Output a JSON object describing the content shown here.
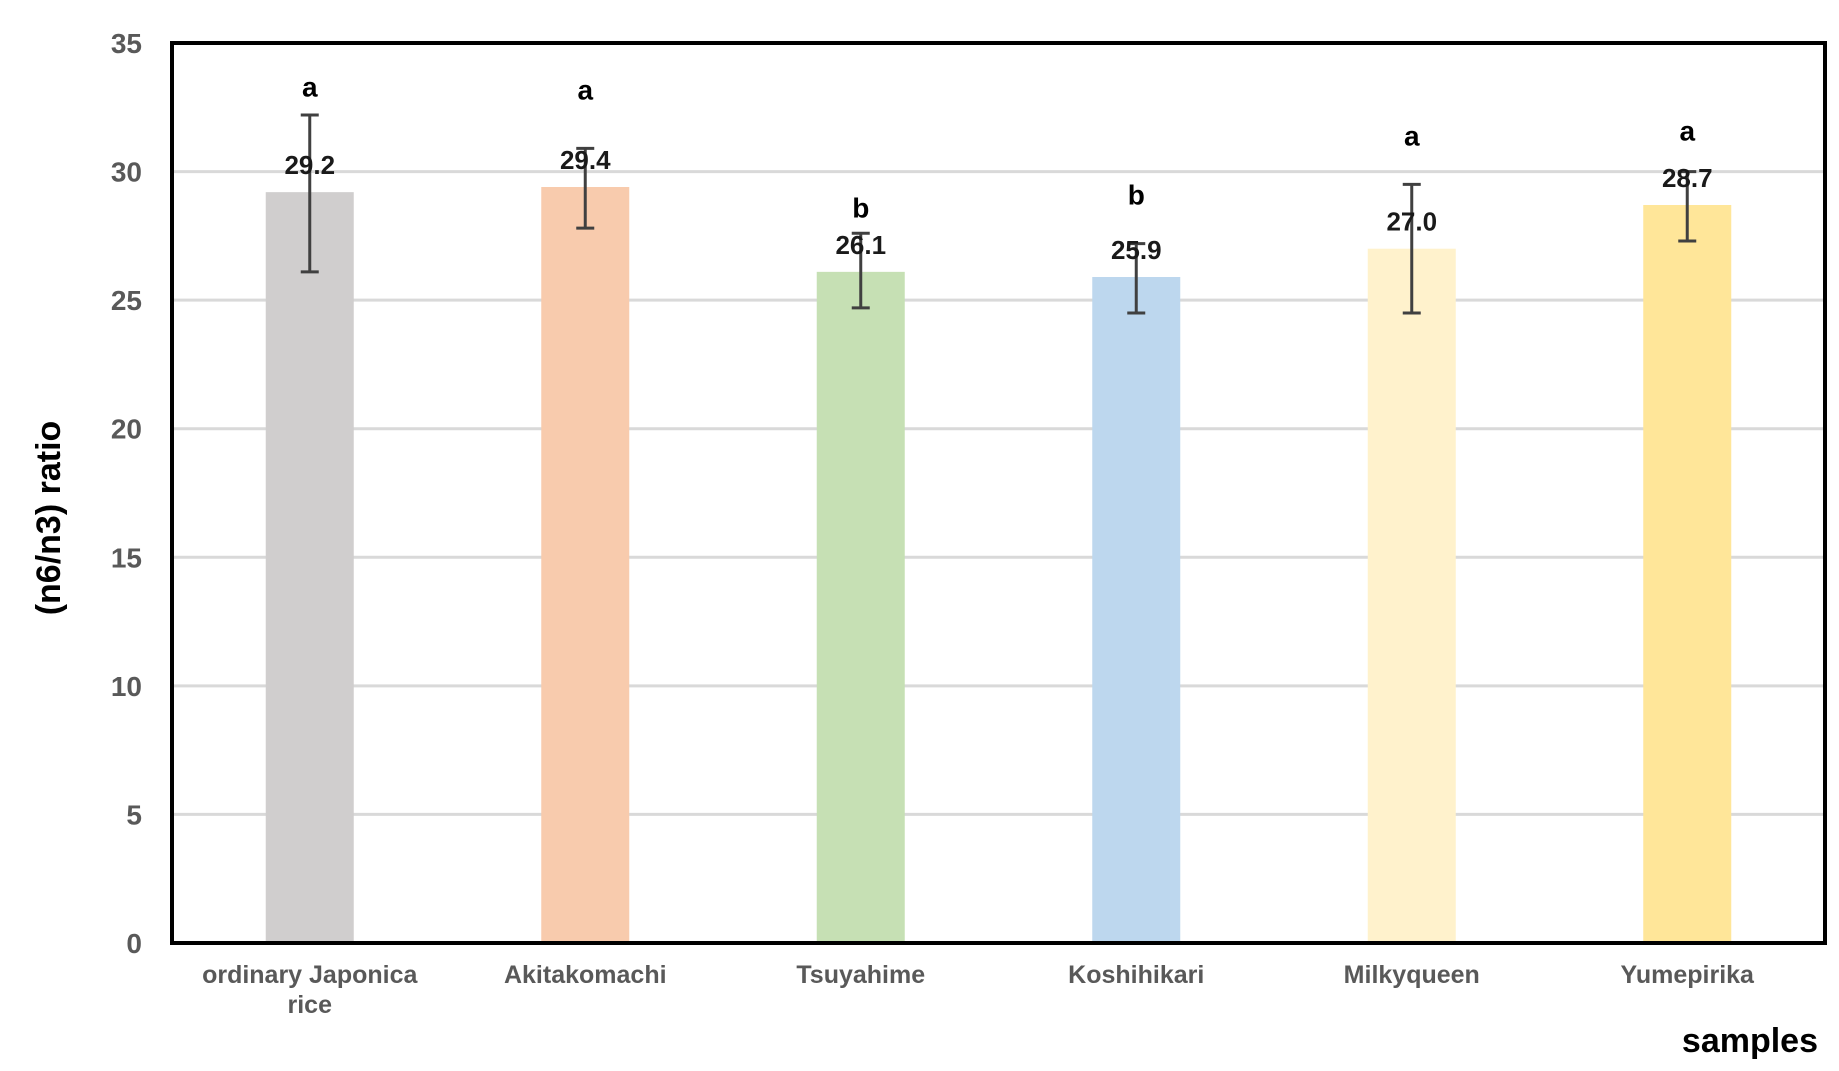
{
  "chart_data": {
    "type": "bar",
    "xlabel": "samples",
    "ylabel": "(n6/n3) ratio",
    "ylim": [
      0,
      35
    ],
    "yticks": [
      0,
      5,
      10,
      15,
      20,
      25,
      30,
      35
    ],
    "grid": true,
    "categories": [
      [
        "ordinary Japonica",
        "rice"
      ],
      [
        "Akitakomachi"
      ],
      [
        "Tsuyahime"
      ],
      [
        "Koshihikari"
      ],
      [
        "Milkyqueen"
      ],
      [
        "Yumepirika"
      ]
    ],
    "values": [
      29.2,
      29.4,
      26.1,
      25.9,
      27.0,
      28.7
    ],
    "value_labels": [
      "29.2",
      "29.4",
      "26.1",
      "25.9",
      "27.0",
      "28.7"
    ],
    "error_low": [
      26.1,
      27.8,
      24.7,
      24.5,
      24.5,
      27.3
    ],
    "error_high": [
      32.2,
      30.9,
      27.6,
      27.2,
      29.5,
      30.0
    ],
    "significance": [
      "a",
      "a",
      "b",
      "b",
      "a",
      "a"
    ],
    "significance_y": [
      33.3,
      33.2,
      28.6,
      29.1,
      31.4,
      31.6
    ],
    "colors": [
      "#d0cece",
      "#f8cbad",
      "#c6e0b4",
      "#bdd7ee",
      "#fff2cc",
      "#ffe699"
    ]
  }
}
